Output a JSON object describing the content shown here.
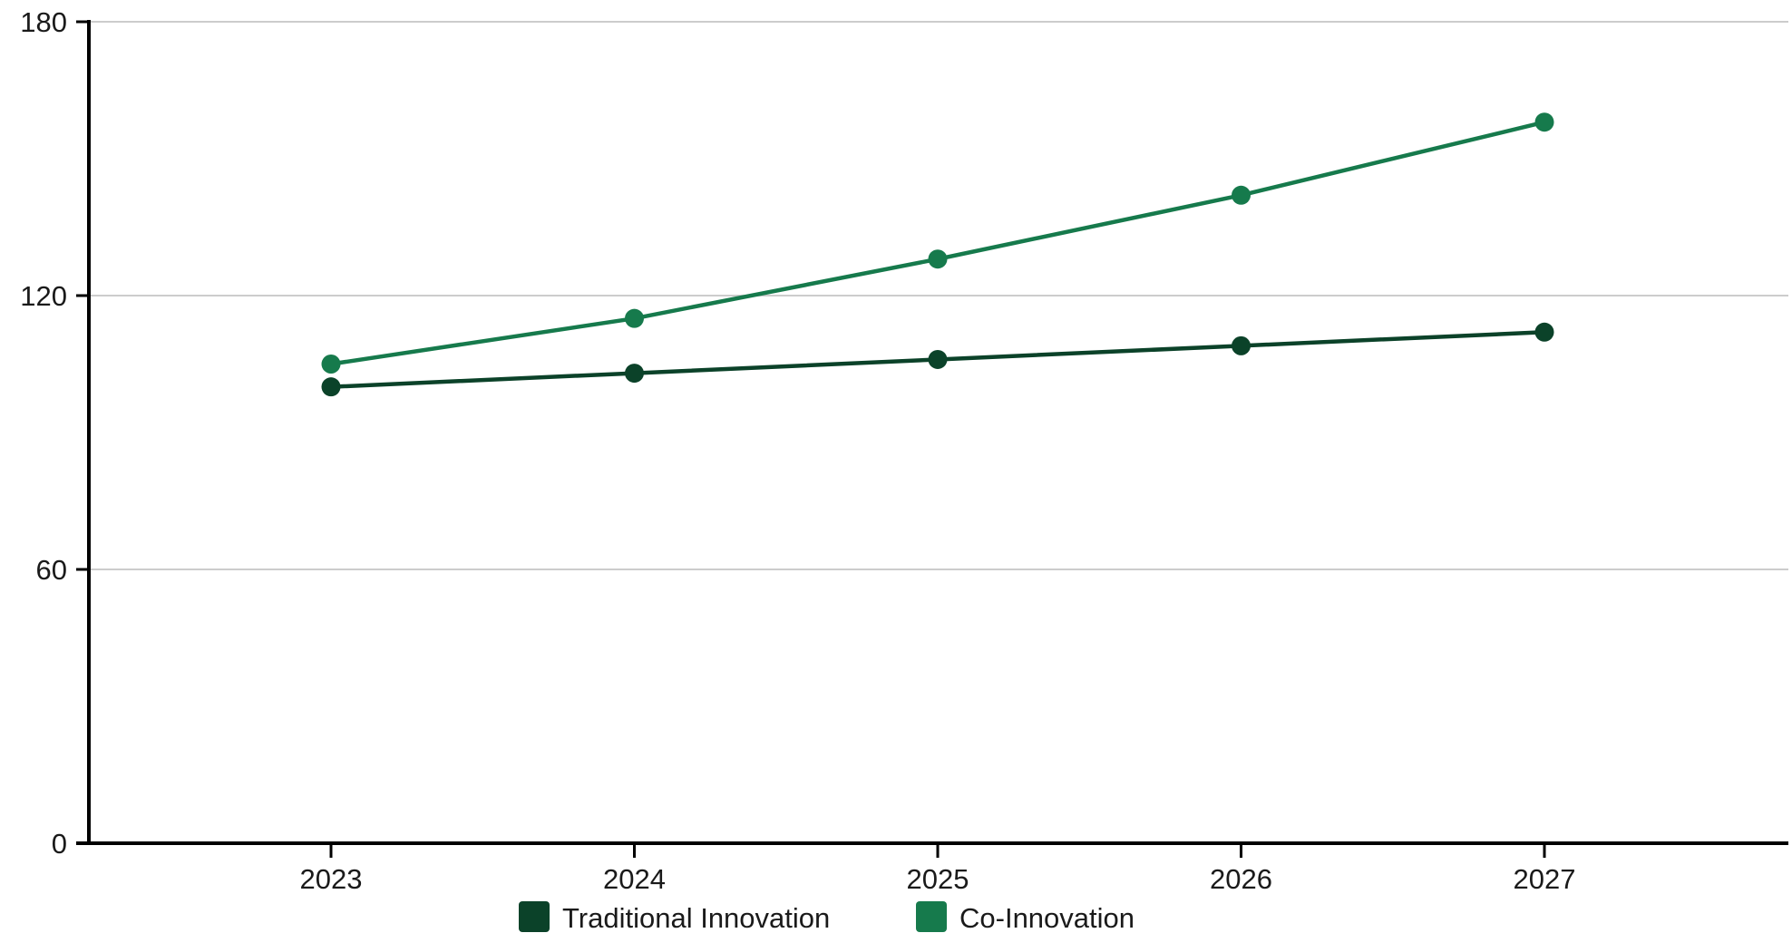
{
  "chart_data": {
    "type": "line",
    "title": "",
    "xlabel": "",
    "ylabel": "",
    "categories": [
      "2023",
      "2024",
      "2025",
      "2026",
      "2027"
    ],
    "ylim": [
      0,
      180
    ],
    "yticks": [
      0,
      60,
      120,
      180
    ],
    "grid": true,
    "legend_position": "bottom",
    "series": [
      {
        "name": "Traditional Innovation",
        "color": "#0b4229",
        "values": [
          100,
          103,
          106,
          109,
          112
        ]
      },
      {
        "name": "Co-Innovation",
        "color": "#167a4c",
        "values": [
          105,
          115,
          128,
          142,
          158
        ]
      }
    ]
  }
}
